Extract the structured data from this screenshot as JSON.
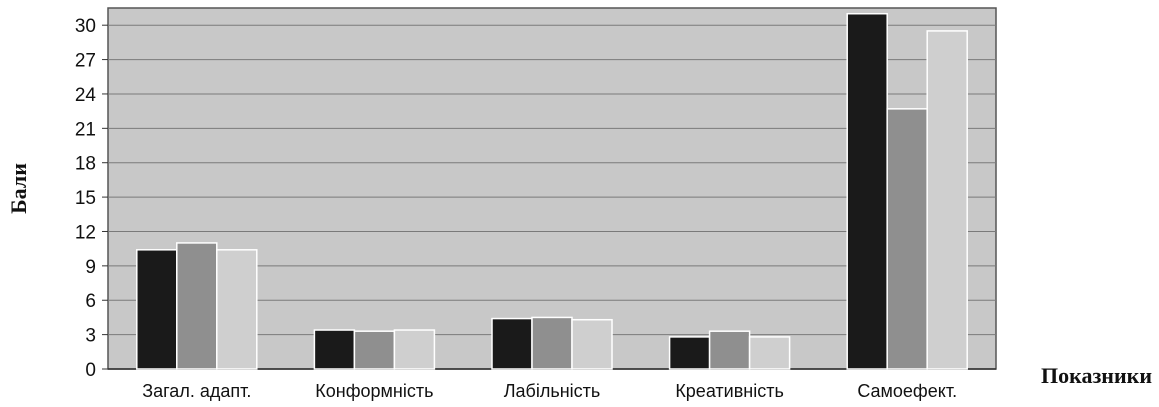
{
  "chart_data": {
    "type": "bar",
    "title": "",
    "ylabel": "Бали",
    "xlabel": "Показники",
    "ylim": [
      0,
      31.5
    ],
    "yticks": [
      0,
      3,
      6,
      9,
      12,
      15,
      18,
      21,
      24,
      27,
      30
    ],
    "grid": true,
    "legend": "none",
    "categories": [
      "Загал. адапт.",
      "Конформність",
      "Лабільність",
      "Креативність",
      "Самоефект."
    ],
    "series": [
      {
        "color": "#1a1a1a",
        "values": [
          10.4,
          3.4,
          4.4,
          2.8,
          31.0
        ]
      },
      {
        "color": "#8f8f8f",
        "values": [
          11.0,
          3.3,
          4.5,
          3.3,
          22.7
        ]
      },
      {
        "color": "#cfcfcf",
        "values": [
          10.4,
          3.4,
          4.3,
          2.8,
          29.5
        ]
      }
    ],
    "colors": {
      "plot_background": "#c8c8c8",
      "gridline": "#7a7a7a",
      "bar_border": "#ffffff"
    }
  }
}
